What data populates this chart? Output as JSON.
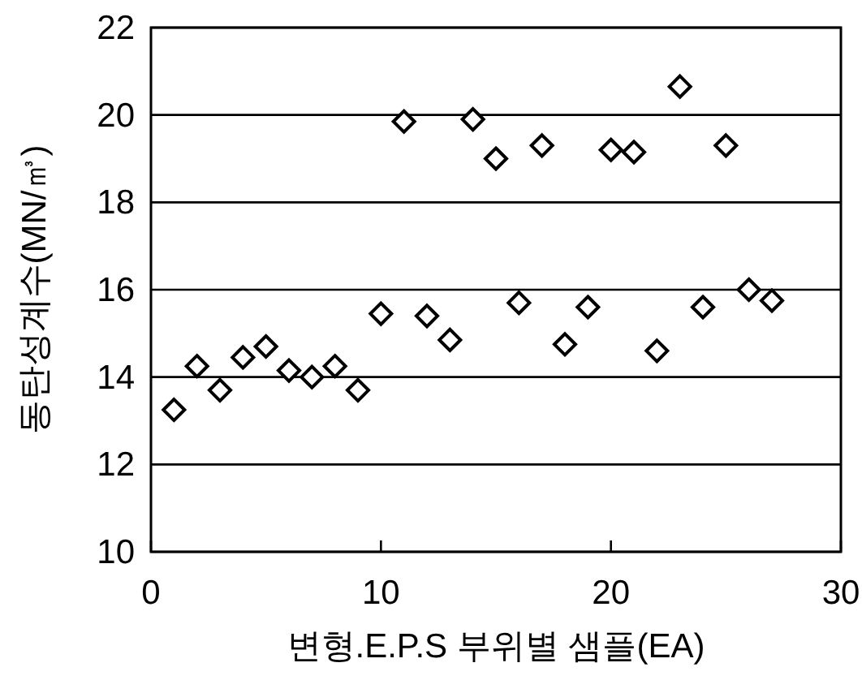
{
  "chart_data": {
    "type": "scatter",
    "xlabel": "변형.E.P.S 부위별 샘플(EA)",
    "ylabel": "동탄성계수(MN/㎥)",
    "x": [
      1,
      2,
      3,
      4,
      5,
      6,
      7,
      8,
      9,
      10,
      11,
      12,
      13,
      14,
      15,
      16,
      17,
      18,
      19,
      20,
      21,
      22,
      23,
      24,
      25,
      26,
      27
    ],
    "series": [
      {
        "color": "#000000",
        "values": [
          13.25,
          14.25,
          13.7,
          14.45,
          14.7,
          14.15,
          14.0,
          14.25,
          13.7,
          15.45,
          19.85,
          15.4,
          14.85,
          19.9,
          19.0,
          15.7,
          19.3,
          14.75,
          15.6,
          19.2,
          19.15,
          14.6,
          20.65,
          15.6,
          19.3,
          16.0,
          15.75
        ]
      }
    ],
    "xlim": [
      0,
      30
    ],
    "xticks": [
      0,
      10,
      20,
      30
    ],
    "ylim": [
      10,
      22
    ],
    "yticks": [
      10,
      12,
      14,
      16,
      18,
      20,
      22
    ],
    "grid": "y",
    "marker": "diamond"
  }
}
